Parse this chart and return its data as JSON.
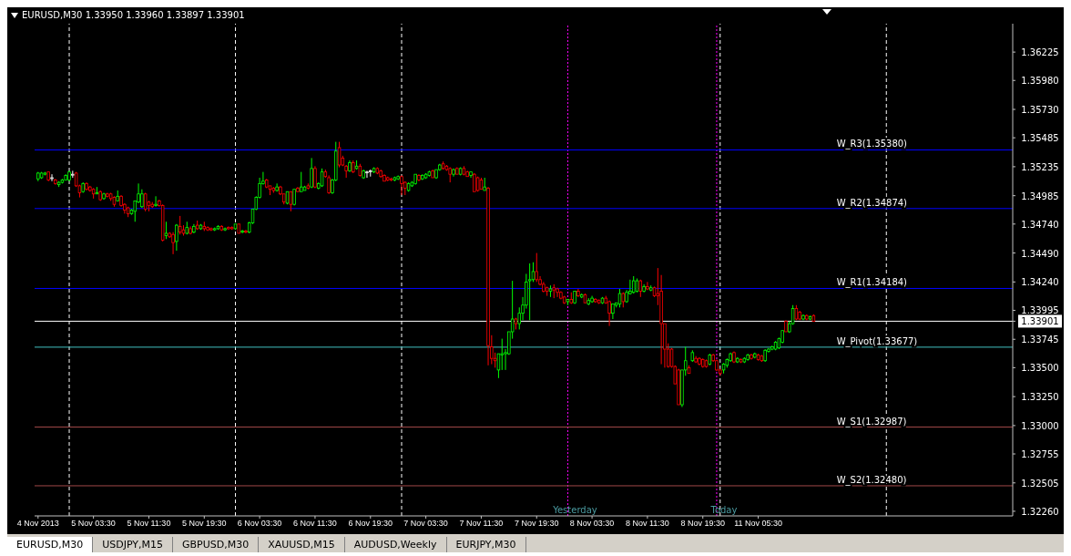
{
  "chart_data": {
    "type": "candlestick",
    "title": "EURUSD,M30 1.33950 1.33960 1.33897 1.33901",
    "categories": [
      "4 Nov 2013",
      null,
      null,
      null,
      null,
      null,
      null,
      null,
      null,
      null,
      null,
      null,
      null,
      null,
      null,
      null,
      "5 Nov 03:30",
      null,
      null,
      null,
      null,
      null,
      null,
      null,
      null,
      null,
      null,
      null,
      null,
      null,
      null,
      null,
      "5 Nov 11:30",
      null,
      null,
      null,
      null,
      null,
      null,
      null,
      null,
      null,
      null,
      null,
      null,
      null,
      null,
      null,
      "5 Nov 19:30",
      null,
      null,
      null,
      null,
      null,
      null,
      null,
      null,
      null,
      null,
      null,
      null,
      null,
      null,
      null,
      "6 Nov 03:30",
      null,
      null,
      null,
      null,
      null,
      null,
      null,
      null,
      null,
      null,
      null,
      null,
      null,
      null,
      null,
      "6 Nov 11:30",
      null,
      null,
      null,
      null,
      null,
      null,
      null,
      null,
      null,
      null,
      null,
      null,
      null,
      null,
      null,
      "6 Nov 19:30",
      null,
      null,
      null,
      null,
      null,
      null,
      null,
      null,
      null,
      null,
      null,
      null,
      null,
      null,
      null,
      "7 Nov 03:30",
      null,
      null,
      null,
      null,
      null,
      null,
      null,
      null,
      null,
      null,
      null,
      null,
      null,
      null,
      null,
      "7 Nov 11:30",
      null,
      null,
      null,
      null,
      null,
      null,
      null,
      null,
      null,
      null,
      null,
      null,
      null,
      null,
      null,
      "7 Nov 19:30",
      null,
      null,
      null,
      null,
      null,
      null,
      null,
      null,
      null,
      null,
      null,
      null,
      null,
      null,
      null,
      "8 Nov 03:30",
      null,
      null,
      null,
      null,
      null,
      null,
      null,
      null,
      null,
      null,
      null,
      null,
      null,
      null,
      null,
      "8 Nov 11:30",
      null,
      null,
      null,
      null,
      null,
      null,
      null,
      null,
      null,
      null,
      null,
      null,
      null,
      null,
      null,
      "8 Nov 19:30",
      null,
      null,
      null,
      null,
      null,
      null,
      null,
      null,
      null,
      null,
      null,
      null,
      null,
      null,
      null,
      "11 Nov 05:30",
      null,
      null,
      null,
      null,
      null,
      null,
      null,
      null,
      null,
      null,
      null,
      null,
      null,
      null,
      null,
      null,
      null,
      null,
      null,
      null,
      null,
      null,
      null,
      null,
      null,
      null,
      null,
      null,
      null,
      null,
      null,
      null,
      null,
      null,
      null,
      null,
      null,
      null,
      null,
      null,
      null,
      null,
      null,
      null,
      null,
      null,
      null,
      null,
      null,
      null,
      null,
      null,
      null,
      null,
      null,
      null,
      null,
      null,
      null,
      null,
      null,
      null,
      null,
      null,
      null,
      null,
      null,
      null,
      null,
      null,
      null,
      null,
      null
    ],
    "ohlc": [
      [
        1.3513,
        1.3519,
        1.3511,
        1.3518
      ],
      [
        1.3514,
        1.3519,
        1.3513,
        1.3518
      ],
      [
        1.3517,
        1.3519,
        1.3516,
        1.3518
      ],
      [
        1.3519,
        1.3519,
        1.3511,
        1.3512
      ],
      [
        1.3514,
        1.3517,
        1.3511,
        1.3514
      ],
      [
        1.3512,
        1.3513,
        1.3508,
        1.3509
      ],
      [
        1.3508,
        1.3511,
        1.3506,
        1.351
      ],
      [
        1.351,
        1.3513,
        1.3509,
        1.3512
      ],
      [
        1.3512,
        1.3517,
        1.3512,
        1.3516
      ],
      [
        1.3512,
        1.352,
        1.3511,
        1.3519
      ],
      [
        1.3517,
        1.352,
        1.3514,
        1.3517
      ],
      [
        1.3518,
        1.3519,
        1.3506,
        1.3507
      ],
      [
        1.3507,
        1.3508,
        1.3497,
        1.3501
      ],
      [
        1.3502,
        1.351,
        1.3501,
        1.3509
      ],
      [
        1.3509,
        1.351,
        1.3503,
        1.3504
      ],
      [
        1.3506,
        1.3507,
        1.3502,
        1.3503
      ],
      [
        1.3504,
        1.3505,
        1.3496,
        1.35
      ],
      [
        1.35,
        1.3506,
        1.35,
        1.3501
      ],
      [
        1.3502,
        1.3503,
        1.3494,
        1.3495
      ],
      [
        1.3496,
        1.3501,
        1.3495,
        1.35
      ],
      [
        1.35,
        1.3501,
        1.3497,
        1.3498
      ],
      [
        1.35,
        1.3501,
        1.3494,
        1.3496
      ],
      [
        1.3497,
        1.3498,
        1.3489,
        1.3491
      ],
      [
        1.3494,
        1.3503,
        1.3494,
        1.3498
      ],
      [
        1.3498,
        1.3499,
        1.3489,
        1.349
      ],
      [
        1.3491,
        1.3492,
        1.3483,
        1.3486
      ],
      [
        1.3488,
        1.3489,
        1.348,
        1.3483
      ],
      [
        1.3483,
        1.3487,
        1.3482,
        1.3486
      ],
      [
        1.3485,
        1.3494,
        1.3476,
        1.3494
      ],
      [
        1.3493,
        1.3509,
        1.3492,
        1.35
      ],
      [
        1.3489,
        1.3504,
        1.3488,
        1.35
      ],
      [
        1.35,
        1.3501,
        1.3485,
        1.3487
      ],
      [
        1.3493,
        1.3494,
        1.3485,
        1.349
      ],
      [
        1.3491,
        1.3493,
        1.3488,
        1.3489
      ],
      [
        1.349,
        1.3498,
        1.3489,
        1.3491
      ],
      [
        1.3494,
        1.3495,
        1.3489,
        1.349
      ],
      [
        1.349,
        1.3491,
        1.3459,
        1.346
      ],
      [
        1.3464,
        1.3476,
        1.3461,
        1.3466
      ],
      [
        1.3466,
        1.3467,
        1.3462,
        1.3463
      ],
      [
        1.3465,
        1.3467,
        1.3448,
        1.3458
      ],
      [
        1.3459,
        1.3474,
        1.3451,
        1.3473
      ],
      [
        1.3472,
        1.3481,
        1.3465,
        1.3467
      ],
      [
        1.3469,
        1.3473,
        1.3464,
        1.3466
      ],
      [
        1.3466,
        1.3476,
        1.3465,
        1.3471
      ],
      [
        1.347,
        1.3472,
        1.3465,
        1.3466
      ],
      [
        1.3467,
        1.3474,
        1.3466,
        1.3472
      ],
      [
        1.3473,
        1.3477,
        1.3469,
        1.347
      ],
      [
        1.347,
        1.3474,
        1.3469,
        1.3473
      ],
      [
        1.3472,
        1.3476,
        1.3468,
        1.347
      ],
      [
        1.3471,
        1.3472,
        1.3468,
        1.3469
      ],
      [
        1.347,
        1.3471,
        1.3468,
        1.3469
      ],
      [
        1.3469,
        1.3471,
        1.3468,
        1.347
      ],
      [
        1.347,
        1.3473,
        1.3469,
        1.3472
      ],
      [
        1.3472,
        1.3473,
        1.3468,
        1.3469
      ],
      [
        1.3469,
        1.3471,
        1.3468,
        1.347
      ],
      [
        1.3471,
        1.3472,
        1.3469,
        1.347
      ],
      [
        1.3471,
        1.3472,
        1.3469,
        1.347
      ],
      [
        1.347,
        1.3474,
        1.3469,
        1.3474
      ],
      [
        1.3474,
        1.3474,
        1.3466,
        1.3466
      ],
      [
        1.3467,
        1.3469,
        1.3466,
        1.3468
      ],
      [
        1.3468,
        1.3469,
        1.3466,
        1.3467
      ],
      [
        1.3467,
        1.3476,
        1.3466,
        1.3475
      ],
      [
        1.3475,
        1.3487,
        1.3474,
        1.3487
      ],
      [
        1.3487,
        1.3498,
        1.3486,
        1.3497
      ],
      [
        1.3497,
        1.3514,
        1.3496,
        1.3509
      ],
      [
        1.3509,
        1.3519,
        1.3508,
        1.3511
      ],
      [
        1.3512,
        1.3513,
        1.3505,
        1.3506
      ],
      [
        1.3507,
        1.3507,
        1.3499,
        1.3504
      ],
      [
        1.3505,
        1.3506,
        1.3501,
        1.3503
      ],
      [
        1.3503,
        1.3509,
        1.3502,
        1.3506
      ],
      [
        1.3506,
        1.3507,
        1.3499,
        1.35
      ],
      [
        1.35,
        1.35,
        1.3491,
        1.3493
      ],
      [
        1.3492,
        1.3502,
        1.3491,
        1.3502
      ],
      [
        1.3502,
        1.3502,
        1.3485,
        1.3491
      ],
      [
        1.3491,
        1.3504,
        1.349,
        1.3504
      ],
      [
        1.3505,
        1.3506,
        1.3502,
        1.3502
      ],
      [
        1.3502,
        1.3519,
        1.3502,
        1.3506
      ],
      [
        1.3503,
        1.3507,
        1.3503,
        1.3506
      ],
      [
        1.3507,
        1.3509,
        1.3504,
        1.3505
      ],
      [
        1.3506,
        1.3531,
        1.3505,
        1.3522
      ],
      [
        1.3522,
        1.3524,
        1.3505,
        1.3506
      ],
      [
        1.3505,
        1.351,
        1.3504,
        1.3509
      ],
      [
        1.3507,
        1.3522,
        1.3506,
        1.3519
      ],
      [
        1.3519,
        1.3521,
        1.3514,
        1.3515
      ],
      [
        1.3514,
        1.3516,
        1.35,
        1.3501
      ],
      [
        1.3501,
        1.3513,
        1.35,
        1.3512
      ],
      [
        1.3512,
        1.3545,
        1.3511,
        1.3537
      ],
      [
        1.354,
        1.3545,
        1.3523,
        1.3525
      ],
      [
        1.3531,
        1.3533,
        1.3524,
        1.3525
      ],
      [
        1.3524,
        1.3525,
        1.3514,
        1.352
      ],
      [
        1.352,
        1.3529,
        1.3519,
        1.3527
      ],
      [
        1.3527,
        1.3529,
        1.3518,
        1.3519
      ],
      [
        1.3522,
        1.3529,
        1.3521,
        1.3524
      ],
      [
        1.3524,
        1.3526,
        1.3515,
        1.3516
      ],
      [
        1.3514,
        1.3521,
        1.3513,
        1.352
      ],
      [
        1.3519,
        1.352,
        1.3514,
        1.3519
      ],
      [
        1.352,
        1.3521,
        1.3515,
        1.352
      ],
      [
        1.3519,
        1.3523,
        1.3518,
        1.3522
      ],
      [
        1.3522,
        1.3523,
        1.3517,
        1.3518
      ],
      [
        1.352,
        1.3521,
        1.3514,
        1.3515
      ],
      [
        1.3516,
        1.3517,
        1.3511,
        1.3511
      ],
      [
        1.3514,
        1.3515,
        1.3511,
        1.3512
      ],
      [
        1.3513,
        1.3514,
        1.3511,
        1.3512
      ],
      [
        1.3512,
        1.3515,
        1.3511,
        1.3514
      ],
      [
        1.3513,
        1.3516,
        1.3512,
        1.3515
      ],
      [
        1.3515,
        1.3516,
        1.3499,
        1.3509
      ],
      [
        1.351,
        1.3511,
        1.3499,
        1.3505
      ],
      [
        1.3503,
        1.351,
        1.3502,
        1.3509
      ],
      [
        1.3507,
        1.3511,
        1.3506,
        1.351
      ],
      [
        1.3509,
        1.3517,
        1.3508,
        1.3517
      ],
      [
        1.3516,
        1.3517,
        1.3511,
        1.3512
      ],
      [
        1.3513,
        1.3517,
        1.3512,
        1.3516
      ],
      [
        1.3514,
        1.3518,
        1.3513,
        1.3517
      ],
      [
        1.3516,
        1.352,
        1.3515,
        1.3519
      ],
      [
        1.352,
        1.3521,
        1.3514,
        1.3514
      ],
      [
        1.3514,
        1.3521,
        1.3513,
        1.3521
      ],
      [
        1.3521,
        1.3526,
        1.352,
        1.3525
      ],
      [
        1.3526,
        1.3528,
        1.3521,
        1.3522
      ],
      [
        1.3524,
        1.3525,
        1.352,
        1.3521
      ],
      [
        1.3522,
        1.3523,
        1.351,
        1.3517
      ],
      [
        1.3517,
        1.3522,
        1.3515,
        1.3521
      ],
      [
        1.3522,
        1.3523,
        1.3517,
        1.3517
      ],
      [
        1.3517,
        1.3523,
        1.3516,
        1.3522
      ],
      [
        1.3522,
        1.3524,
        1.3516,
        1.3517
      ],
      [
        1.3519,
        1.352,
        1.3515,
        1.3515
      ],
      [
        1.3516,
        1.3519,
        1.3514,
        1.3519
      ],
      [
        1.3517,
        1.3518,
        1.3502,
        1.3502
      ],
      [
        1.3514,
        1.3515,
        1.3502,
        1.3503
      ],
      [
        1.3512,
        1.3514,
        1.3504,
        1.3504
      ],
      [
        1.3503,
        1.3514,
        1.3503,
        1.3506
      ],
      [
        1.3505,
        1.3506,
        1.3352,
        1.3369
      ],
      [
        1.3368,
        1.3378,
        1.3353,
        1.3358
      ],
      [
        1.3358,
        1.3363,
        1.335,
        1.3356
      ],
      [
        1.3348,
        1.3362,
        1.3341,
        1.3362
      ],
      [
        1.3361,
        1.3375,
        1.3348,
        1.3362
      ],
      [
        1.3362,
        1.3366,
        1.3348,
        1.3363
      ],
      [
        1.3362,
        1.3381,
        1.3361,
        1.3381
      ],
      [
        1.3381,
        1.3425,
        1.3375,
        1.3392
      ],
      [
        1.3392,
        1.3393,
        1.3383,
        1.3388
      ],
      [
        1.3388,
        1.3402,
        1.3383,
        1.3397
      ],
      [
        1.3397,
        1.3411,
        1.3391,
        1.3404
      ],
      [
        1.3404,
        1.3431,
        1.3401,
        1.3424
      ],
      [
        1.3425,
        1.344,
        1.3391,
        1.3426
      ],
      [
        1.3426,
        1.3441,
        1.3424,
        1.3433
      ],
      [
        1.3433,
        1.3449,
        1.3424,
        1.3426
      ],
      [
        1.3426,
        1.3429,
        1.3421,
        1.3422
      ],
      [
        1.3422,
        1.3424,
        1.3415,
        1.3416
      ],
      [
        1.3419,
        1.342,
        1.3412,
        1.3416
      ],
      [
        1.3416,
        1.3421,
        1.3411,
        1.3418
      ],
      [
        1.3419,
        1.3422,
        1.341,
        1.3417
      ],
      [
        1.3418,
        1.3419,
        1.3411,
        1.3415
      ],
      [
        1.3415,
        1.3416,
        1.3409,
        1.341
      ],
      [
        1.3411,
        1.3412,
        1.3405,
        1.3406
      ],
      [
        1.3407,
        1.3409,
        1.3404,
        1.3409
      ],
      [
        1.3409,
        1.3415,
        1.3405,
        1.3406
      ],
      [
        1.3406,
        1.3416,
        1.3405,
        1.3416
      ],
      [
        1.3416,
        1.3418,
        1.3411,
        1.3412
      ],
      [
        1.3411,
        1.3414,
        1.341,
        1.3413
      ],
      [
        1.3413,
        1.3414,
        1.3406,
        1.3406
      ],
      [
        1.3405,
        1.341,
        1.3404,
        1.3408
      ],
      [
        1.3407,
        1.3412,
        1.3406,
        1.341
      ],
      [
        1.3409,
        1.341,
        1.3406,
        1.3407
      ],
      [
        1.3408,
        1.3409,
        1.3405,
        1.3406
      ],
      [
        1.3406,
        1.3411,
        1.3405,
        1.341
      ],
      [
        1.341,
        1.3412,
        1.3405,
        1.3406
      ],
      [
        1.3407,
        1.3408,
        1.3386,
        1.3397
      ],
      [
        1.3397,
        1.3405,
        1.3392,
        1.3405
      ],
      [
        1.3404,
        1.3406,
        1.3402,
        1.3406
      ],
      [
        1.3405,
        1.3418,
        1.3402,
        1.3414
      ],
      [
        1.3414,
        1.3415,
        1.3402,
        1.3407
      ],
      [
        1.3407,
        1.3417,
        1.3406,
        1.3415
      ],
      [
        1.3414,
        1.3426,
        1.3413,
        1.3416
      ],
      [
        1.3415,
        1.3429,
        1.3414,
        1.3425
      ],
      [
        1.3416,
        1.3427,
        1.3415,
        1.3425
      ],
      [
        1.3425,
        1.3426,
        1.3411,
        1.3416
      ],
      [
        1.3416,
        1.3422,
        1.3415,
        1.342
      ],
      [
        1.342,
        1.3424,
        1.3417,
        1.3418
      ],
      [
        1.3417,
        1.3421,
        1.3416,
        1.3419
      ],
      [
        1.3419,
        1.342,
        1.3411,
        1.3412
      ],
      [
        1.3414,
        1.3436,
        1.3404,
        1.3412
      ],
      [
        1.3416,
        1.343,
        1.3353,
        1.3388
      ],
      [
        1.3388,
        1.3388,
        1.335,
        1.3366
      ],
      [
        1.3366,
        1.3371,
        1.335,
        1.3351
      ],
      [
        1.3366,
        1.3367,
        1.335,
        1.3351
      ],
      [
        1.3351,
        1.3352,
        1.3336,
        1.3336
      ],
      [
        1.3348,
        1.3349,
        1.3318,
        1.3318
      ],
      [
        1.3318,
        1.3348,
        1.3316,
        1.3348
      ],
      [
        1.3348,
        1.3368,
        1.3343,
        1.3356
      ],
      [
        1.335,
        1.3352,
        1.3345,
        1.3345
      ],
      [
        1.3356,
        1.3365,
        1.3355,
        1.3363
      ],
      [
        1.3358,
        1.336,
        1.3354,
        1.3355
      ],
      [
        1.3358,
        1.3359,
        1.3352,
        1.3353
      ],
      [
        1.3357,
        1.3358,
        1.335,
        1.3351
      ],
      [
        1.3356,
        1.3357,
        1.335,
        1.3351
      ],
      [
        1.3353,
        1.3362,
        1.3352,
        1.3361
      ],
      [
        1.3361,
        1.3362,
        1.3355,
        1.3356
      ],
      [
        1.3356,
        1.3357,
        1.3347,
        1.3348
      ],
      [
        1.3348,
        1.3349,
        1.3343,
        1.3345
      ],
      [
        1.3348,
        1.3354,
        1.3345,
        1.3353
      ],
      [
        1.3352,
        1.3358,
        1.335,
        1.3357
      ],
      [
        1.3356,
        1.3363,
        1.3355,
        1.3362
      ],
      [
        1.3363,
        1.3364,
        1.3354,
        1.3355
      ],
      [
        1.3355,
        1.3359,
        1.3354,
        1.3358
      ],
      [
        1.3357,
        1.3358,
        1.3354,
        1.3355
      ],
      [
        1.3355,
        1.3359,
        1.3354,
        1.3358
      ],
      [
        1.3357,
        1.3362,
        1.3356,
        1.3361
      ],
      [
        1.3361,
        1.3362,
        1.3357,
        1.3358
      ],
      [
        1.3359,
        1.3363,
        1.3358,
        1.3362
      ],
      [
        1.3361,
        1.3362,
        1.3356,
        1.3357
      ],
      [
        1.336,
        1.3361,
        1.3355,
        1.3356
      ],
      [
        1.3356,
        1.3366,
        1.3355,
        1.3365
      ],
      [
        1.3364,
        1.3367,
        1.3363,
        1.3366
      ],
      [
        1.3366,
        1.3369,
        1.3365,
        1.3368
      ],
      [
        1.3366,
        1.3373,
        1.3365,
        1.3372
      ],
      [
        1.3367,
        1.3376,
        1.3366,
        1.3375
      ],
      [
        1.3372,
        1.3382,
        1.3371,
        1.3382
      ],
      [
        1.339,
        1.3391,
        1.3381,
        1.3381
      ],
      [
        1.3381,
        1.339,
        1.338,
        1.3388
      ],
      [
        1.3388,
        1.3404,
        1.3387,
        1.3401
      ],
      [
        1.3401,
        1.3404,
        1.3391,
        1.3392
      ],
      [
        1.3398,
        1.3399,
        1.3391,
        1.3392
      ],
      [
        1.3392,
        1.3396,
        1.3391,
        1.3395
      ],
      [
        1.3395,
        1.3396,
        1.3391,
        1.3392
      ],
      [
        1.3392,
        1.3395,
        1.3391,
        1.3394
      ],
      [
        1.3395,
        1.3396,
        1.33897,
        1.33901
      ],
      null,
      null,
      null,
      null,
      null,
      null,
      null,
      null,
      null,
      null,
      null,
      null,
      null,
      null,
      null,
      null,
      null,
      null,
      null,
      null,
      null,
      null,
      null,
      null,
      null,
      null,
      null,
      null,
      null,
      null,
      null,
      null,
      null,
      null,
      null,
      null,
      null,
      null,
      null,
      null,
      null,
      null,
      null,
      null,
      null,
      null,
      null,
      null,
      null,
      null,
      null,
      null,
      null,
      null,
      null,
      null,
      null
    ],
    "ylim": [
      1.3222,
      1.3647
    ],
    "yticks": [
      1.36225,
      {
        "value": 1.3598,
        "label": "1.35980"
      },
      {
        "value": 1.3573,
        "label": "1.35730"
      },
      1.35485,
      1.35235,
      1.34985,
      {
        "value": 1.3474,
        "label": "1.34740"
      },
      {
        "value": 1.3449,
        "label": "1.34490"
      },
      {
        "value": 1.3424,
        "label": "1.34240"
      },
      1.33995,
      1.33901,
      1.33745,
      {
        "value": 1.335,
        "label": "1.33500"
      },
      {
        "value": 1.3325,
        "label": "1.33250"
      },
      {
        "value": 1.33,
        "label": "1.33000"
      },
      1.32755,
      1.32505,
      {
        "value": 1.3226,
        "label": "1.32260"
      }
    ],
    "ref_lines": [
      {
        "axis": "y",
        "value": 1.3538,
        "label": "W_R3(1.35380)",
        "color": "#0000ff",
        "line_style": "solid"
      },
      {
        "axis": "y",
        "value": 1.34874,
        "label": "W_R2(1.34874)",
        "color": "#0000ff",
        "line_style": "solid"
      },
      {
        "axis": "y",
        "value": 1.34184,
        "label": "W_R1(1.34184)",
        "color": "#0000ff",
        "line_style": "solid"
      },
      {
        "axis": "y",
        "value": 1.33901,
        "color": "#ffffff",
        "line_style": "solid"
      },
      {
        "axis": "y",
        "value": 1.33677,
        "label": "W_Pivot(1.33677)",
        "color": "#40c0c0",
        "line_style": "solid"
      },
      {
        "axis": "y",
        "value": 1.32987,
        "label": "W_S1(1.32987)",
        "color": "#a04848",
        "line_style": "solid"
      },
      {
        "axis": "y",
        "value": 1.3248,
        "label": "W_S2(1.32480)",
        "color": "#a04848",
        "line_style": "solid"
      }
    ],
    "annotations": [
      "EURUSD,M30",
      "USDJPY,M15",
      "GBPUSD,M30",
      "XAUUSD,M15",
      "AUDUSD,Weekly",
      "EURJPY,M30",
      {
        "text": "Yesterday"
      },
      {
        "text": "Today"
      }
    ]
  }
}
